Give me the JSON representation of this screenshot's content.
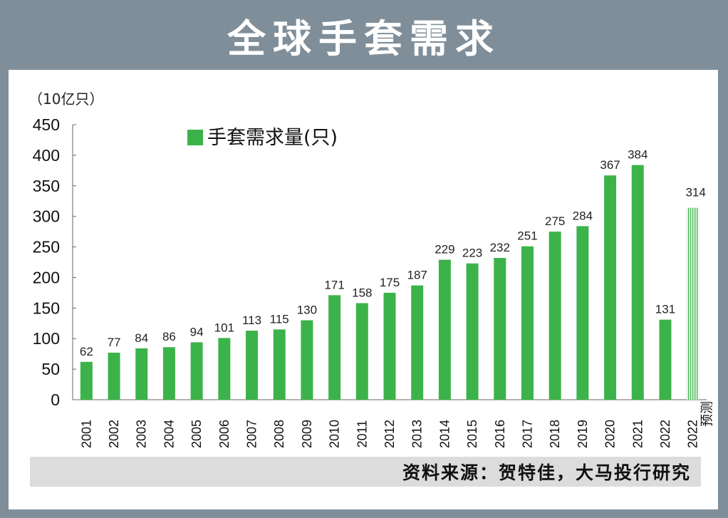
{
  "title": "全球手套需求",
  "source": "资料来源：贺特佳，大马投行研究",
  "chart_data": {
    "type": "bar",
    "ylabel": "（10亿只）",
    "ylim": [
      0,
      450
    ],
    "yticks": [
      0,
      50,
      100,
      150,
      200,
      250,
      300,
      350,
      400,
      450
    ],
    "legend": {
      "label": "手套需求量(只)",
      "position": "top-left"
    },
    "grid": false,
    "categories": [
      "2001",
      "2002",
      "2003",
      "2004",
      "2005",
      "2006",
      "2007",
      "2008",
      "2009",
      "2010",
      "2011",
      "2012",
      "2013",
      "2014",
      "2015",
      "2016",
      "2017",
      "2018",
      "2019",
      "2020",
      "2021",
      "2022",
      "2022"
    ],
    "forecast_label": "预测",
    "values": [
      62,
      77,
      84,
      86,
      94,
      101,
      113,
      115,
      130,
      171,
      158,
      175,
      187,
      229,
      223,
      232,
      251,
      275,
      284,
      367,
      384,
      131,
      314
    ],
    "forecast": [
      false,
      false,
      false,
      false,
      false,
      false,
      false,
      false,
      false,
      false,
      false,
      false,
      false,
      false,
      false,
      false,
      false,
      false,
      false,
      false,
      false,
      false,
      true
    ],
    "colors": {
      "bar": "#3cb34a",
      "forecast": "#3cb34a"
    }
  }
}
